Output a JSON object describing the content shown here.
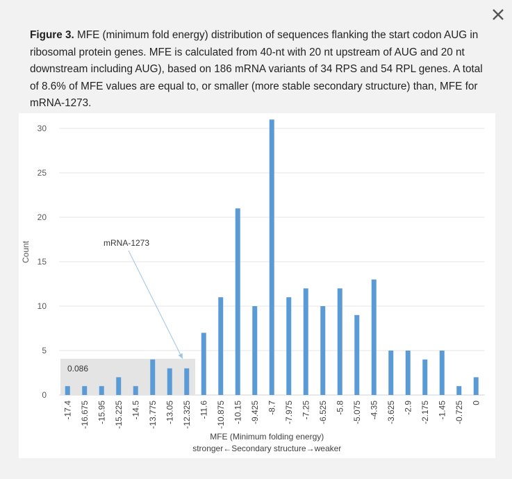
{
  "dialog": {
    "close_icon": "close-icon",
    "caption_label": "Figure 3.",
    "caption_text": "MFE (minimum fold energy) distribution of sequences flanking the start codon AUG in ribosomal protein genes. MFE is calculated from 40-nt with 20 nt upstream of AUG and 20 nt downstream including AUG), based on 186 mRNA variants of 34 RPS and 54 RPL genes. A total of 8.6% of MFE values are equal to, or smaller (more stable secondary structure) than, MFE for mRNA-1273."
  },
  "chart_data": {
    "type": "bar",
    "title": "",
    "xlabel": "MFE (Minimum folding energy)",
    "xlabel2": "stronger←Secondary structure→weaker",
    "ylabel": "Count",
    "ylim": [
      0,
      30
    ],
    "yticks": [
      0,
      5,
      10,
      15,
      20,
      25,
      30
    ],
    "grid": true,
    "bar_color": "#5b9bd5",
    "categories": [
      "-17.4",
      "-16.675",
      "-15.95",
      "-15.225",
      "-14.5",
      "-13.775",
      "-13.05",
      "-12.325",
      "-11.6",
      "-10.875",
      "-10.15",
      "-9.425",
      "-8.7",
      "-7.975",
      "-7.25",
      "-6.525",
      "-5.8",
      "-5.075",
      "-4.35",
      "-3.625",
      "-2.9",
      "-2.175",
      "-1.45",
      "-0.725",
      "0"
    ],
    "values": [
      1,
      1,
      1,
      2,
      1,
      4,
      3,
      3,
      7,
      11,
      21,
      10,
      31,
      11,
      12,
      10,
      12,
      9,
      13,
      5,
      5,
      4,
      5,
      1,
      2
    ],
    "annotations": {
      "highlight_label": "0.086",
      "highlight_range": [
        "-17.4",
        "-12.325"
      ],
      "arrow_label": "mRNA-1273",
      "arrow_target": "-12.325"
    }
  }
}
